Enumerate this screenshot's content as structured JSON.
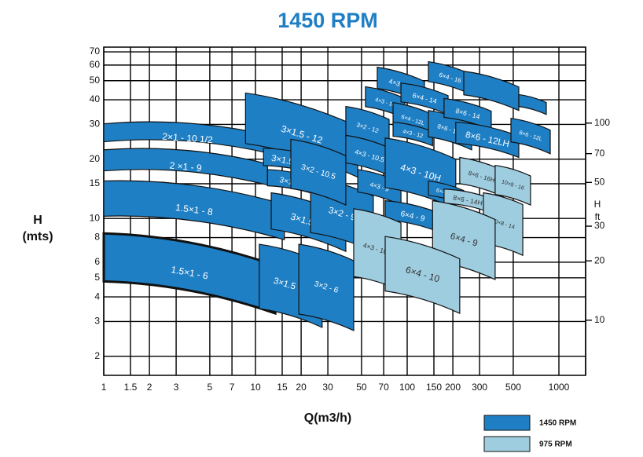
{
  "chart_data": {
    "type": "coverage",
    "title": "1450 RPM",
    "x_label": "Q(m3/h)",
    "y_label": "H",
    "y_unit": "(mts)",
    "y2_label": "H",
    "y2_unit": "ft",
    "log_x": true,
    "log_y": true,
    "grid": true,
    "xlim": [
      1,
      1500
    ],
    "xticks": [
      1,
      1.5,
      2,
      3,
      5,
      7,
      10,
      15,
      20,
      30,
      50,
      70,
      100,
      150,
      200,
      300,
      500,
      1000
    ],
    "ylim": [
      1.6,
      74
    ],
    "yticks": [
      2,
      3,
      4,
      5,
      6,
      8,
      10,
      15,
      20,
      30,
      40,
      50,
      60,
      70
    ],
    "y2lim": [
      5.25,
      243
    ],
    "y2ticks": [
      10,
      20,
      30,
      50,
      70,
      100
    ],
    "legend": "bottom-right",
    "series": [
      {
        "name": "1450 RPM",
        "color": "#1f7fc4",
        "label_color": "#ffffff",
        "tiles": [
          {
            "label": "2×1 - 10 1/2",
            "q": [
              1,
              12.7
            ],
            "h": [
              21.3,
              30.2
            ]
          },
          {
            "label": "2 ×1 - 9",
            "q": [
              1,
              12.0
            ],
            "h": [
              14.8,
              22.3
            ]
          },
          {
            "label": "1.5×1 - 8",
            "q": [
              1,
              15.5
            ],
            "h": [
              7.8,
              15.5
            ]
          },
          {
            "label": "1.5×1 - 6",
            "q": [
              1,
              13.5
            ],
            "h": [
              3.3,
              8.4
            ],
            "bold": true
          },
          {
            "label": "3×1.5 - 12",
            "q": [
              8.6,
              47.2
            ],
            "h": [
              16.2,
              43.3
            ]
          },
          {
            "label": "3×1.5 - 10.5",
            "q": [
              11.3,
              29.3
            ],
            "h": [
              16.2,
              22.7
            ]
          },
          {
            "label": "3×1.5 - 9",
            "q": [
              12.0,
              27.5
            ],
            "h": [
              12.9,
              17.7
            ]
          },
          {
            "label": "3×1.5 - 8",
            "q": [
              12.7,
              39.4
            ],
            "h": [
              6.8,
              13.5
            ]
          },
          {
            "label": "3×1.5 - 6",
            "q": [
              10.6,
              27.5
            ],
            "h": [
              2.8,
              7.4
            ]
          },
          {
            "label": "3×2 - 6",
            "q": [
              19.3,
              44.4
            ],
            "h": [
              2.7,
              7.4
            ]
          },
          {
            "label": "3×2 - 9",
            "q": [
              23.1,
              59.8
            ],
            "h": [
              6.8,
              16.2
            ]
          },
          {
            "label": "3×2 - 10.5",
            "q": [
              17.1,
              39.4
            ],
            "h": [
              11.7,
              25.2
            ]
          },
          {
            "label": "3×2 - 12",
            "q": [
              39.4,
              76.0
            ],
            "h": [
              22.3,
              37.0
            ]
          },
          {
            "label": "4×3 - 10.5",
            "q": [
              39.4,
              80.7
            ],
            "h": [
              16.2,
              26.4
            ]
          },
          {
            "label": "4×3 - 9",
            "q": [
              47.2,
              91.0
            ],
            "h": [
              11.7,
              17.7
            ]
          },
          {
            "label": "4×3 - 10H",
            "q": [
              71.6,
              209
            ],
            "h": [
              11.2,
              25.6
            ]
          },
          {
            "label": "4×3 - 14",
            "q": [
              53.1,
              96.4
            ],
            "h": [
              32.2,
              46.6
            ]
          },
          {
            "label": "4×3 - 16",
            "q": [
              63.5,
              130
            ],
            "h": [
              38.7,
              58.5
            ]
          },
          {
            "label": "6×4 - 12L",
            "q": [
              80.7,
              147
            ],
            "h": [
              25.6,
              38.7
            ]
          },
          {
            "label": "4×3 - 12",
            "q": [
              80.7,
              147
            ],
            "h": [
              23.4,
              30.8
            ]
          },
          {
            "label": "6×4 - 14",
            "q": [
              91.0,
              186
            ],
            "h": [
              33.7,
              48.6
            ]
          },
          {
            "label": "6×4 - 16",
            "q": [
              138,
              266
            ],
            "h": [
              42.5,
              62.4
            ]
          },
          {
            "label": "6×4 - 9",
            "q": [
              71.6,
              165
            ],
            "h": [
              8.5,
              12.3
            ]
          },
          {
            "label": "6×4 - 10",
            "q": [
              138,
              236
            ],
            "h": [
              11.7,
              15.5
            ]
          },
          {
            "label": "8×6 - 12L",
            "q": [
              138,
              266
            ],
            "h": [
              22.3,
              35.3
            ]
          },
          {
            "label": "8×6 - 14",
            "q": [
              175,
              358
            ],
            "h": [
              28.1,
              40.6
            ]
          },
          {
            "label": "8×6 - 12LH",
            "q": [
              209,
              544
            ],
            "h": [
              20.4,
              30.8
            ]
          },
          {
            "label": "8×6 - 12L",
            "q": [
              483,
              877
            ],
            "h": [
              21.3,
              32.2
            ]
          },
          {
            "label": null,
            "q": [
              236,
              544
            ],
            "h": [
              35.3,
              55.8
            ]
          },
          {
            "label": null,
            "q": [
              544,
              826
            ],
            "h": [
              33.7,
              42.5
            ]
          }
        ]
      },
      {
        "name": "975 RPM",
        "color": "#9fcde0",
        "label_color": "#333333",
        "tiles": [
          {
            "label": "8×6 - 16H",
            "q": [
              222,
              429
            ],
            "h": [
              12.9,
              20.4
            ]
          },
          {
            "label": "10×8 - 16",
            "q": [
              380,
              650
            ],
            "h": [
              11.7,
              18.6
            ]
          },
          {
            "label": "8×6 - 14H",
            "q": [
              175,
              358
            ],
            "h": [
              10.7,
              14.1
            ]
          },
          {
            "label": "10×8 - 14",
            "q": [
              318,
              578
            ],
            "h": [
              6.5,
              13.5
            ]
          },
          {
            "label": "6×4 - 9",
            "q": [
              147,
              380
            ],
            "h": [
              4.9,
              12.3
            ]
          },
          {
            "label": "4×3 - 10H",
            "q": [
              44.4,
              91.0
            ],
            "h": [
              4.3,
              11.2
            ]
          },
          {
            "label": "6×4 - 10",
            "q": [
              71.6,
              222
            ],
            "h": [
              3.3,
              8.1
            ]
          }
        ]
      }
    ]
  }
}
